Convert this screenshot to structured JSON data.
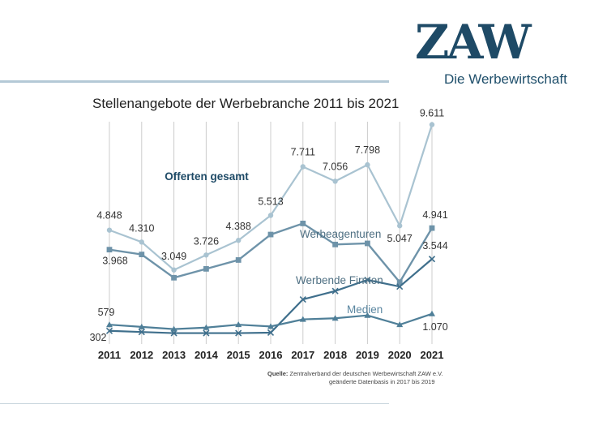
{
  "logo": {
    "mark": "ZAW",
    "subtitle": "Die Werbewirtschaft"
  },
  "source": {
    "label": "Quelle:",
    "text": "Zentralverband der deutschen Werbewirtschaft ZAW e.V.",
    "note": "geänderte Datenbasis in 2017 bis 2019"
  },
  "colors": {
    "gesamt": "#a9c3d1",
    "agenturen": "#6e93a9",
    "firmen": "#3f6f8c",
    "medien": "#4f7f98",
    "grid": "#cccccc"
  },
  "chart_data": {
    "type": "line",
    "title": "Stellenangebote der Werbebranche 2011 bis 2021",
    "xlabel": "",
    "ylabel": "",
    "grid": "vertical",
    "x": [
      "2011",
      "2012",
      "2013",
      "2014",
      "2015",
      "2016",
      "2017",
      "2018",
      "2019",
      "2020",
      "2021"
    ],
    "ylim": [
      0,
      10000
    ],
    "series": [
      {
        "name": "Offerten gesamt",
        "marker": "circle",
        "values": [
          4848,
          4310,
          3049,
          3726,
          4388,
          5513,
          7711,
          7056,
          7798,
          5047,
          9611
        ],
        "labels": [
          "4.848",
          "4.310",
          "3.049",
          "3.726",
          "4.388",
          "5.513",
          "7.711",
          "7.056",
          "7.798",
          "5.047",
          "9.611"
        ]
      },
      {
        "name": "Werbeagenturen",
        "marker": "square",
        "values": [
          3968,
          3750,
          2700,
          3100,
          3500,
          4650,
          5150,
          4200,
          4250,
          2500,
          4941
        ],
        "labels": [
          "3.968",
          "",
          "",
          "",
          "",
          "",
          "",
          "",
          "",
          "",
          "4.941"
        ]
      },
      {
        "name": "Werbende Firmen",
        "marker": "x",
        "values": [
          302,
          250,
          200,
          200,
          200,
          220,
          1720,
          2100,
          2600,
          2300,
          3544
        ],
        "labels": [
          "302",
          "",
          "",
          "",
          "",
          "",
          "",
          "",
          "",
          "",
          "3.544"
        ]
      },
      {
        "name": "Medien",
        "marker": "triangle",
        "values": [
          579,
          480,
          380,
          450,
          580,
          500,
          820,
          870,
          1000,
          580,
          1070
        ],
        "labels": [
          "579",
          "",
          "",
          "",
          "",
          "",
          "",
          "",
          "",
          "",
          "1.070"
        ]
      }
    ]
  }
}
